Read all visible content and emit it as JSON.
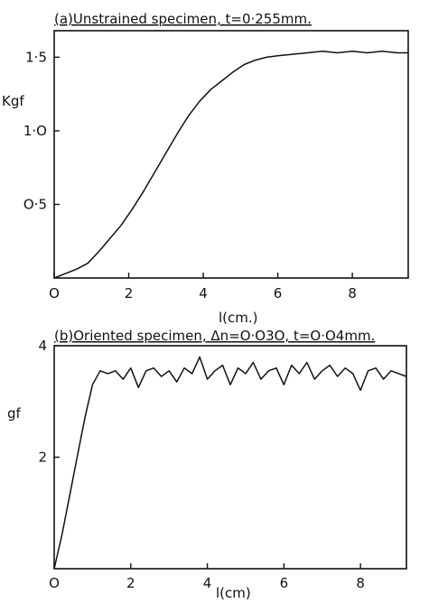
{
  "chart_data": [
    {
      "type": "line",
      "title": "(a)Unstrained specimen, t=0·255mm.",
      "xlabel": "l(cm.)",
      "ylabel": "Kgf",
      "xlim": [
        0,
        9.5
      ],
      "ylim": [
        0,
        1.68
      ],
      "xticks": [
        0,
        2,
        4,
        6,
        8
      ],
      "xtick_labels": [
        "O",
        "2",
        "4",
        "6",
        "8"
      ],
      "yticks": [
        0.5,
        1.0,
        1.5
      ],
      "ytick_labels": [
        "O·5",
        "1·O",
        "1·5"
      ],
      "grid": false,
      "series": [
        {
          "x": [
            0,
            0.3,
            0.6,
            0.9,
            1.2,
            1.5,
            1.8,
            2.1,
            2.4,
            2.7,
            3.0,
            3.3,
            3.6,
            3.9,
            4.2,
            4.5,
            4.8,
            5.1,
            5.4,
            5.7,
            6.0,
            6.4,
            6.8,
            7.2,
            7.6,
            8.0,
            8.4,
            8.8,
            9.2,
            9.5
          ],
          "y": [
            0,
            0.03,
            0.06,
            0.1,
            0.18,
            0.27,
            0.36,
            0.47,
            0.59,
            0.72,
            0.85,
            0.98,
            1.1,
            1.2,
            1.28,
            1.34,
            1.4,
            1.45,
            1.48,
            1.5,
            1.51,
            1.52,
            1.53,
            1.54,
            1.53,
            1.54,
            1.53,
            1.54,
            1.53,
            1.53
          ]
        }
      ]
    },
    {
      "type": "line",
      "title": "(b)Oriented specimen, Δn=O·O3O, t=O·O4mm.",
      "xlabel": "l(cm)",
      "ylabel": "gf",
      "xlim": [
        0,
        9.2
      ],
      "ylim": [
        0,
        4
      ],
      "xticks": [
        0,
        2,
        4,
        6,
        8
      ],
      "xtick_labels": [
        "O",
        "2",
        "4",
        "6",
        "8"
      ],
      "yticks": [
        2,
        4
      ],
      "ytick_labels": [
        "2",
        "4"
      ],
      "grid": false,
      "series": [
        {
          "x": [
            0,
            0.2,
            0.4,
            0.6,
            0.8,
            1.0,
            1.2,
            1.4,
            1.6,
            1.8,
            2.0,
            2.2,
            2.4,
            2.6,
            2.8,
            3.0,
            3.2,
            3.4,
            3.6,
            3.8,
            4.0,
            4.2,
            4.4,
            4.6,
            4.8,
            5.0,
            5.2,
            5.4,
            5.6,
            5.8,
            6.0,
            6.2,
            6.4,
            6.6,
            6.8,
            7.0,
            7.2,
            7.4,
            7.6,
            7.8,
            8.0,
            8.2,
            8.4,
            8.6,
            8.8,
            9.0,
            9.2
          ],
          "y": [
            0,
            0.6,
            1.3,
            2.0,
            2.7,
            3.3,
            3.55,
            3.5,
            3.55,
            3.4,
            3.6,
            3.25,
            3.55,
            3.6,
            3.45,
            3.55,
            3.35,
            3.6,
            3.5,
            3.8,
            3.4,
            3.55,
            3.65,
            3.3,
            3.6,
            3.5,
            3.7,
            3.4,
            3.55,
            3.6,
            3.3,
            3.65,
            3.5,
            3.7,
            3.4,
            3.55,
            3.65,
            3.45,
            3.6,
            3.5,
            3.2,
            3.55,
            3.6,
            3.4,
            3.55,
            3.5,
            3.45
          ]
        }
      ]
    }
  ]
}
